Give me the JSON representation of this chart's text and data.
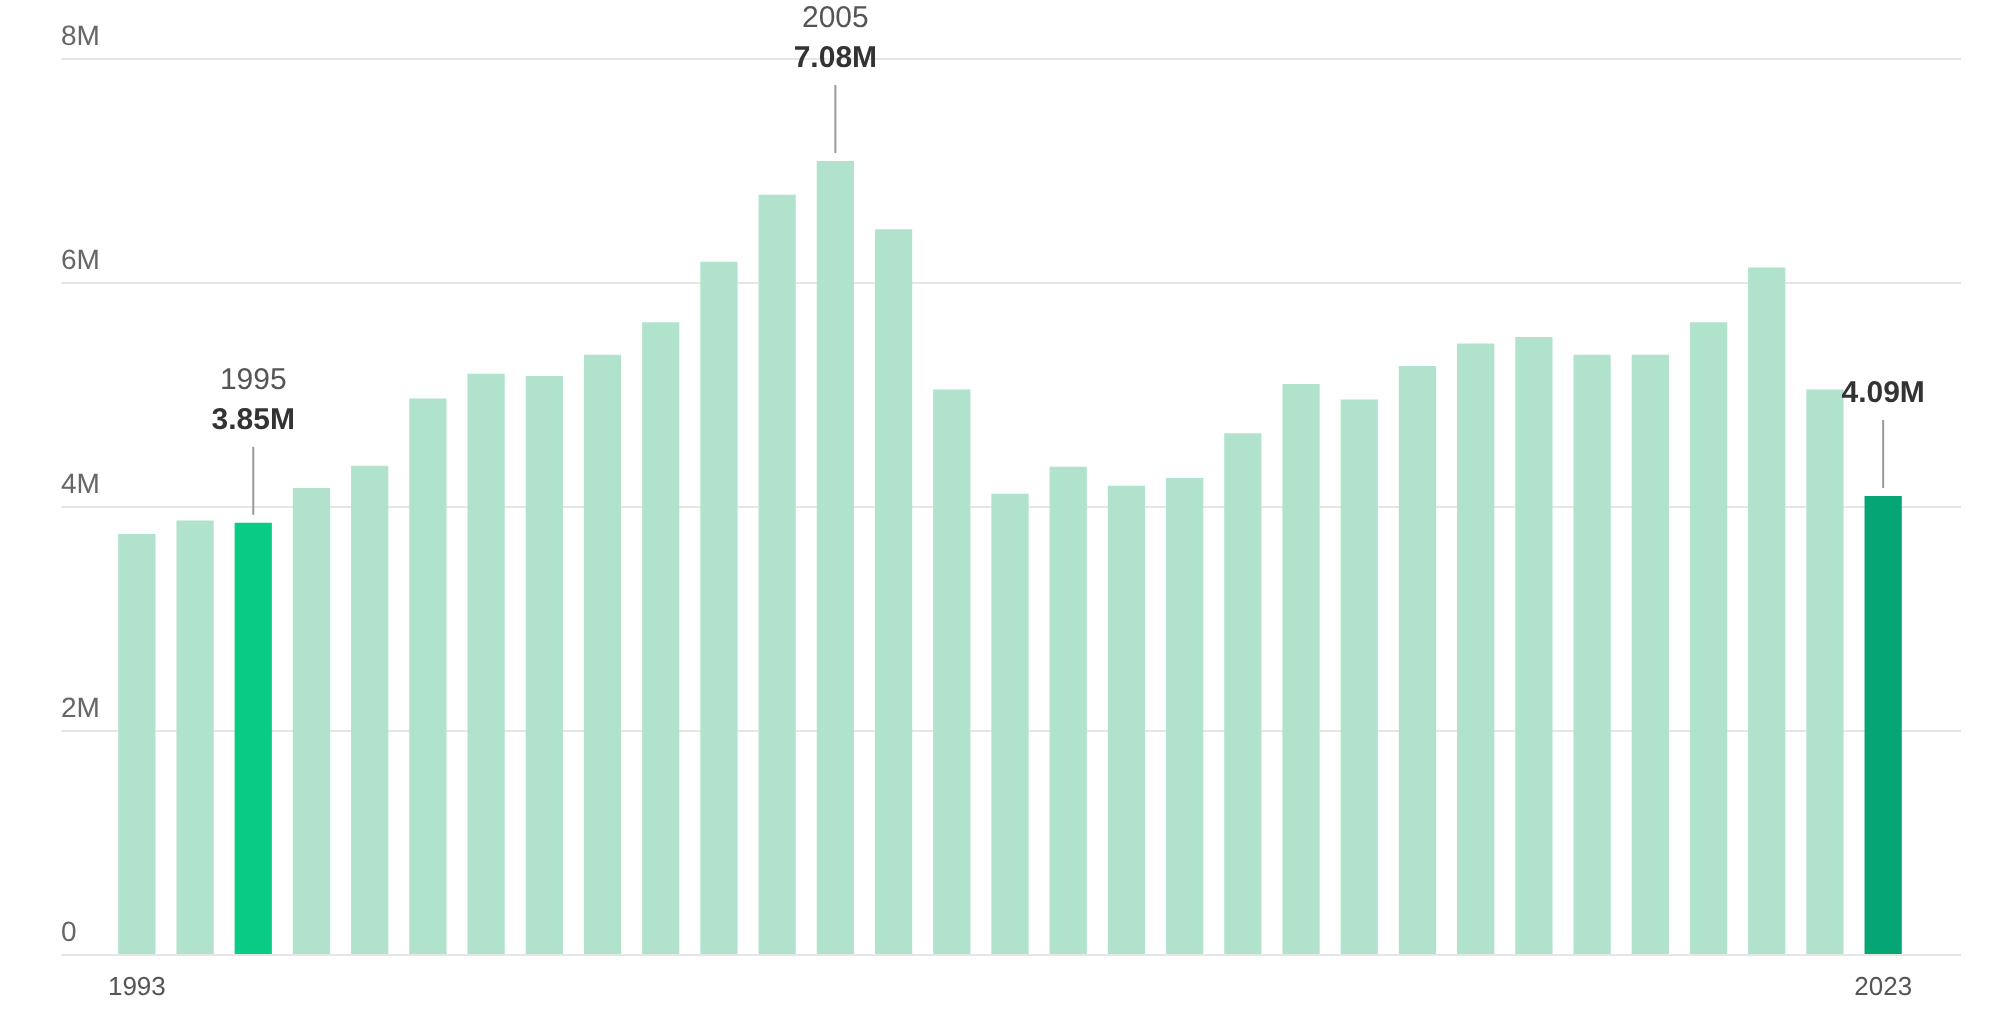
{
  "chart_data": {
    "type": "bar",
    "categories": [
      "1993",
      null,
      null,
      null,
      null,
      null,
      null,
      null,
      null,
      null,
      null,
      null,
      null,
      null,
      null,
      null,
      null,
      null,
      null,
      null,
      null,
      null,
      null,
      null,
      null,
      null,
      null,
      null,
      null,
      null,
      "2023"
    ],
    "values": [
      3.75,
      3.87,
      3.85,
      4.16,
      4.36,
      4.96,
      5.18,
      5.16,
      5.35,
      5.64,
      6.18,
      6.78,
      7.08,
      6.47,
      5.04,
      4.11,
      4.35,
      4.18,
      4.25,
      4.65,
      5.09,
      4.95,
      5.25,
      5.45,
      5.51,
      5.35,
      5.35,
      5.64,
      6.13,
      5.04,
      4.09
    ],
    "colors": [
      "#b1e3cc",
      "#b1e3cc",
      "#0acb85",
      "#b1e3cc",
      "#b1e3cc",
      "#b1e3cc",
      "#b1e3cc",
      "#b1e3cc",
      "#b1e3cc",
      "#b1e3cc",
      "#b1e3cc",
      "#b1e3cc",
      "#b1e3cc",
      "#b1e3cc",
      "#b1e3cc",
      "#b1e3cc",
      "#b1e3cc",
      "#b1e3cc",
      "#b1e3cc",
      "#b1e3cc",
      "#b1e3cc",
      "#b1e3cc",
      "#b1e3cc",
      "#b1e3cc",
      "#b1e3cc",
      "#b1e3cc",
      "#b1e3cc",
      "#b1e3cc",
      "#b1e3cc",
      "#b1e3cc",
      "#06a674"
    ],
    "value_labels": [
      null,
      null,
      "3.85M",
      null,
      null,
      null,
      null,
      null,
      null,
      null,
      null,
      null,
      "7.08M",
      null,
      null,
      null,
      null,
      null,
      null,
      null,
      null,
      null,
      null,
      null,
      null,
      null,
      null,
      null,
      null,
      null,
      "4.09M"
    ],
    "annotations": [
      "1995",
      "2005"
    ],
    "ylim": [
      0,
      8
    ],
    "yticks": [
      {
        "value": 0,
        "label": "0"
      },
      {
        "value": 2,
        "label": "2M"
      },
      {
        "value": 4,
        "label": "4M"
      },
      {
        "value": 6,
        "label": "6M"
      },
      {
        "value": 8,
        "label": "8M"
      }
    ],
    "grid": "y"
  }
}
